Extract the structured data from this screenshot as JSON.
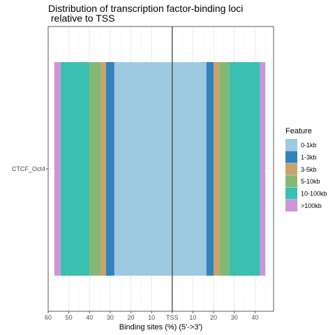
{
  "chart_data": {
    "type": "bar",
    "orientation": "horizontal-diverging",
    "title_lines": [
      "Distribution of transcription factor-binding loci",
      " relative to TSS"
    ],
    "xlabel": "Binding sites (%) (5'->3')",
    "ylabel": "",
    "categories": [
      "CTCF_Oct4"
    ],
    "x_ticks": [
      {
        "value": -60,
        "label": "60"
      },
      {
        "value": -50,
        "label": "50"
      },
      {
        "value": -40,
        "label": "40"
      },
      {
        "value": -30,
        "label": "30"
      },
      {
        "value": -20,
        "label": "20"
      },
      {
        "value": -10,
        "label": "10"
      },
      {
        "value": 0,
        "label": "TSS"
      },
      {
        "value": 10,
        "label": "10"
      },
      {
        "value": 20,
        "label": "20"
      },
      {
        "value": 30,
        "label": "30"
      },
      {
        "value": 40,
        "label": "40"
      }
    ],
    "xlim": [
      -60,
      49
    ],
    "grid": true,
    "legend_position": "right",
    "legend_title": "Feature",
    "series": [
      {
        "name": "0-1kb",
        "color": "#9ECAE1",
        "upstream": 28.0,
        "downstream": 16.5
      },
      {
        "name": "1-3kb",
        "color": "#3182BD",
        "upstream": 4.0,
        "downstream": 3.5
      },
      {
        "name": "3-5kb",
        "color": "#C6A46C",
        "upstream": 2.5,
        "downstream": 3.0
      },
      {
        "name": "5-10kb",
        "color": "#84B873",
        "upstream": 5.5,
        "downstream": 4.5
      },
      {
        "name": "10-100kb",
        "color": "#3BBFB1",
        "upstream": 14.0,
        "downstream": 15.0
      },
      {
        "name": ">100kb",
        "color": "#CE93D8",
        "upstream": 3.0,
        "downstream": 2.5
      }
    ]
  }
}
